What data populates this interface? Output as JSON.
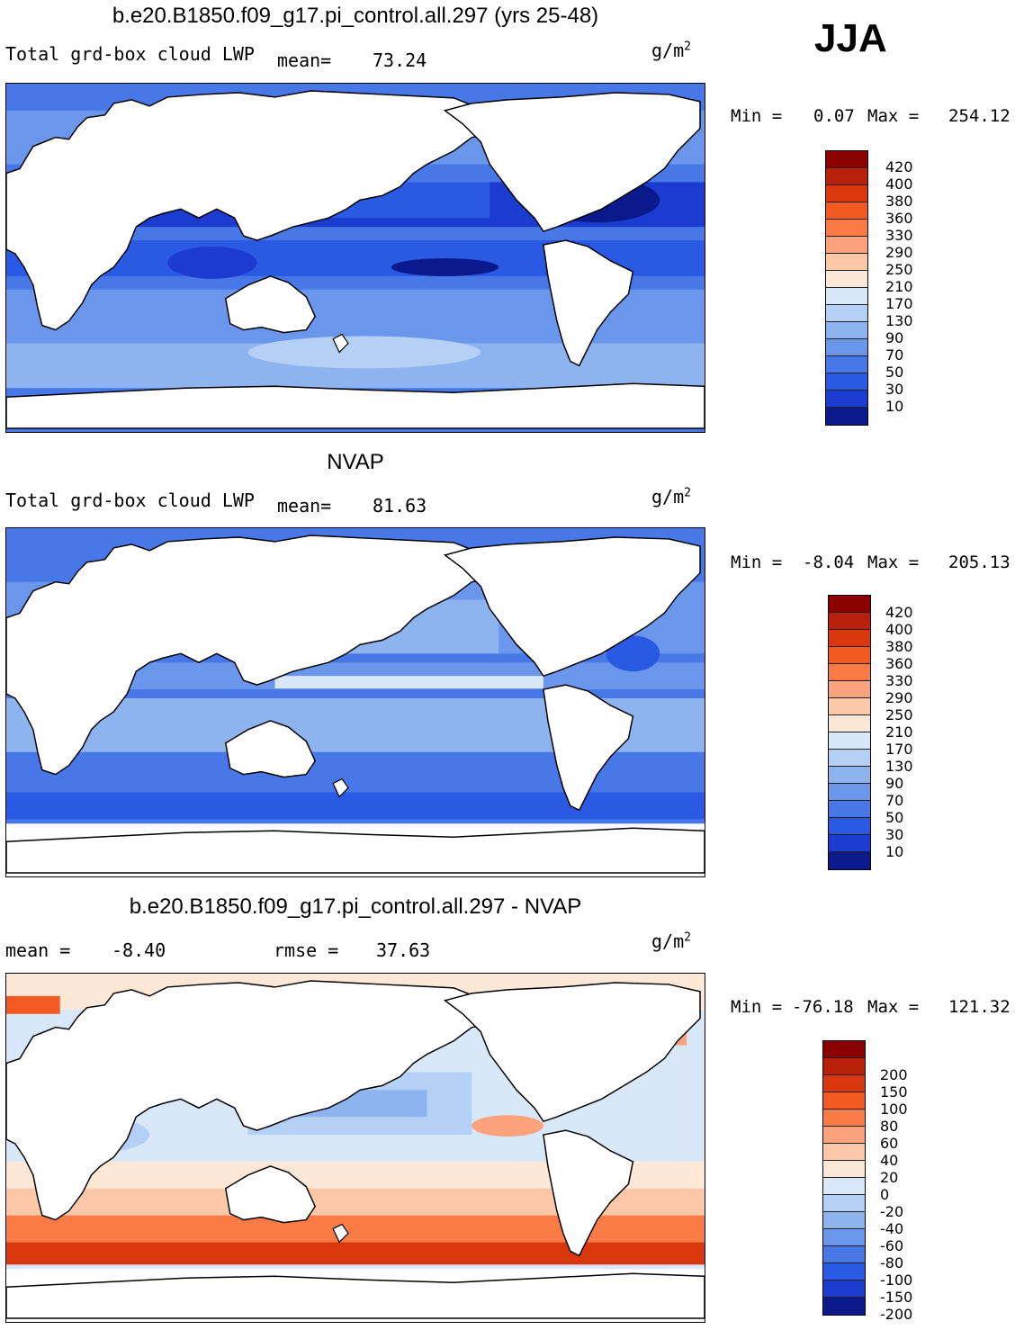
{
  "season": "JJA",
  "units_base": "g/m",
  "units_exp": "2",
  "panels": [
    {
      "title": "b.e20.B1850.f09_g17.pi_control.all.297 (yrs 25-48)",
      "left_label": "Total grd-box cloud LWP",
      "stat_label": "mean=",
      "stat_value": "73.24",
      "min_label": "Min =",
      "min_value": "0.07",
      "max_label": "Max =",
      "max_value": "254.12",
      "colorbar": {
        "labels": [
          "420",
          "400",
          "380",
          "360",
          "330",
          "290",
          "250",
          "210",
          "170",
          "130",
          "90",
          "70",
          "50",
          "30",
          "10"
        ],
        "colors": [
          "#8b0000",
          "#b8200a",
          "#d9380f",
          "#f25a22",
          "#fa7b45",
          "#fca27c",
          "#fcc8a8",
          "#fde8d8",
          "#d8e8f8",
          "#b4d0f4",
          "#8eb4f0",
          "#6a96ec",
          "#4878e8",
          "#2a5ae4",
          "#1c3cd0",
          "#0a1a8c"
        ]
      }
    },
    {
      "title": "NVAP",
      "left_label": "Total grd-box cloud LWP",
      "stat_label": "mean=",
      "stat_value": "81.63",
      "min_label": "Min =",
      "min_value": "-8.04",
      "max_label": "Max =",
      "max_value": "205.13",
      "colorbar": {
        "labels": [
          "420",
          "400",
          "380",
          "360",
          "330",
          "290",
          "250",
          "210",
          "170",
          "130",
          "90",
          "70",
          "50",
          "30",
          "10"
        ],
        "colors": [
          "#8b0000",
          "#b8200a",
          "#d9380f",
          "#f25a22",
          "#fa7b45",
          "#fca27c",
          "#fcc8a8",
          "#fde8d8",
          "#d8e8f8",
          "#b4d0f4",
          "#8eb4f0",
          "#6a96ec",
          "#4878e8",
          "#2a5ae4",
          "#1c3cd0",
          "#0a1a8c"
        ]
      }
    },
    {
      "title": "b.e20.B1850.f09_g17.pi_control.all.297 - NVAP",
      "mean_label": "mean =",
      "mean_value": "-8.40",
      "rmse_label": "rmse =",
      "rmse_value": "37.63",
      "min_label": "Min =",
      "min_value": "-76.18",
      "max_label": "Max =",
      "max_value": "121.32",
      "colorbar": {
        "labels": [
          "200",
          "150",
          "100",
          "80",
          "60",
          "40",
          "20",
          "0",
          "-20",
          "-40",
          "-60",
          "-80",
          "-100",
          "-150",
          "-200"
        ],
        "colors": [
          "#8b0000",
          "#b8200a",
          "#d9380f",
          "#f25a22",
          "#fa7b45",
          "#fca27c",
          "#fcc8a8",
          "#fde8d8",
          "#d8e8f8",
          "#b4d0f4",
          "#8eb4f0",
          "#6a96ec",
          "#4878e8",
          "#2a5ae4",
          "#1c3cd0",
          "#0a1a8c"
        ]
      }
    }
  ]
}
